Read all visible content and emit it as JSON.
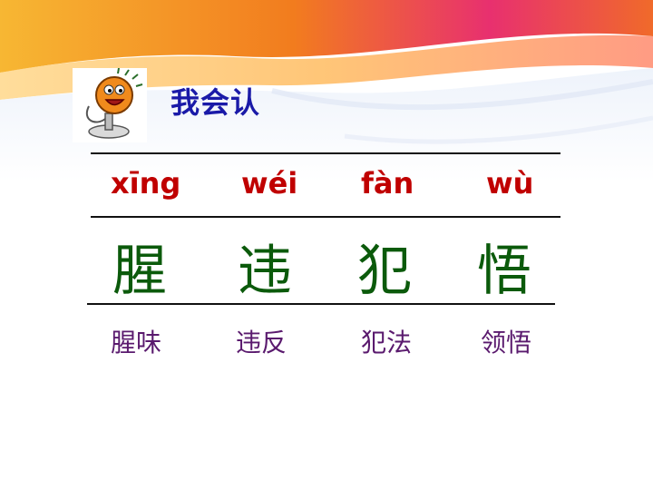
{
  "header": {
    "title": "我会认",
    "mascot_icon": "microphone-mascot-icon"
  },
  "characters": [
    {
      "pinyin": "xīng",
      "hanzi": "腥",
      "word": "腥味"
    },
    {
      "pinyin": "wéi",
      "hanzi": "违",
      "word": "违反"
    },
    {
      "pinyin": "fàn",
      "hanzi": "犯",
      "word": "犯法"
    },
    {
      "pinyin": "wù",
      "hanzi": "悟",
      "word": "领悟"
    }
  ],
  "colors": {
    "title": "#1a1aa8",
    "pinyin": "#c00000",
    "hanzi": "#0b5a0b",
    "words": "#5a1a6e",
    "banner_orange": "#f39a1c",
    "banner_pink": "#e23b8a"
  }
}
